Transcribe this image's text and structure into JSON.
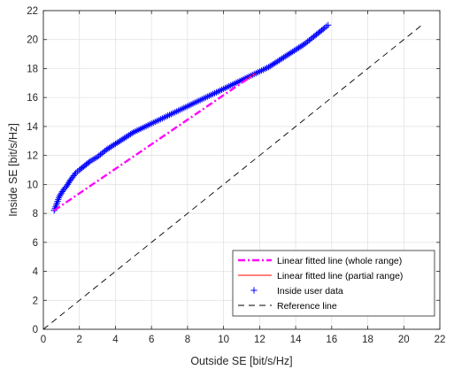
{
  "chart_data": {
    "type": "scatter",
    "xlabel": "Outside SE [bit/s/Hz]",
    "ylabel": "Inside SE [bit/s/Hz]",
    "xlim": [
      0,
      22
    ],
    "ylim": [
      0,
      22
    ],
    "xticks": [
      "0",
      "2",
      "4",
      "6",
      "8",
      "10",
      "12",
      "14",
      "16",
      "18",
      "20",
      "22"
    ],
    "yticks": [
      "0",
      "2",
      "4",
      "6",
      "8",
      "10",
      "12",
      "14",
      "16",
      "18",
      "20",
      "22"
    ],
    "grid": true,
    "legend_position": "bottom-right",
    "series": [
      {
        "name": "Linear fitted line (whole range)",
        "kind": "line",
        "style": "dash-dot",
        "color": "#ff00ff",
        "x": [
          0.6,
          11.7
        ],
        "y": [
          8.2,
          17.6
        ]
      },
      {
        "name": "Linear fitted line (partial range)",
        "kind": "line",
        "style": "solid",
        "color": "#ff0000",
        "x": [
          11.2,
          11.8
        ],
        "y": [
          17.2,
          17.7
        ]
      },
      {
        "name": "Inside user data",
        "kind": "markers",
        "marker": "plus",
        "color": "#0000ff",
        "x": [
          0.6,
          0.9,
          1.1,
          1.3,
          1.5,
          1.8,
          2.0,
          2.3,
          2.6,
          3.0,
          3.5,
          4.0,
          4.5,
          5.0,
          5.5,
          6.0,
          6.5,
          7.0,
          7.5,
          8.0,
          8.5,
          9.0,
          9.5,
          10.0,
          10.5,
          11.0,
          11.5,
          12.0,
          12.5,
          13.0,
          13.5,
          14.0,
          14.5,
          15.0,
          15.3,
          15.6,
          15.8
        ],
        "y": [
          8.2,
          9.2,
          9.6,
          9.9,
          10.3,
          10.8,
          11.0,
          11.3,
          11.6,
          11.9,
          12.4,
          12.8,
          13.2,
          13.6,
          13.9,
          14.2,
          14.5,
          14.8,
          15.1,
          15.4,
          15.7,
          16.0,
          16.3,
          16.6,
          16.9,
          17.2,
          17.5,
          17.8,
          18.1,
          18.5,
          18.9,
          19.3,
          19.7,
          20.2,
          20.5,
          20.8,
          21.0
        ]
      },
      {
        "name": "Reference line",
        "kind": "line",
        "style": "dashed",
        "color": "#000000",
        "x": [
          0,
          21
        ],
        "y": [
          0,
          21
        ]
      }
    ]
  }
}
